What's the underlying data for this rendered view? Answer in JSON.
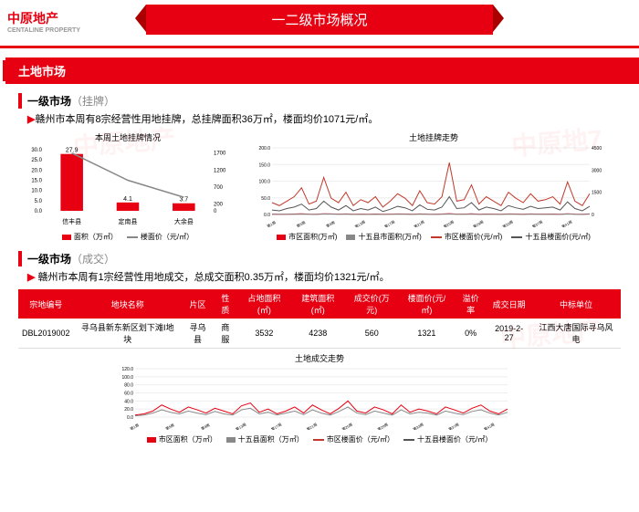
{
  "logo": {
    "brand": "中原地产",
    "en": "CENTALINE PROPERTY"
  },
  "banner": {
    "title": "一二级市场概况"
  },
  "section_land": {
    "label": "土地市场"
  },
  "sub_listing": {
    "title": "一级市场",
    "suffix": "（挂牌）"
  },
  "listing_desc": "赣州市本周有8宗经营性用地挂牌，总挂牌面积36万㎡，楼面均价1071元/㎡。",
  "chart_left": {
    "title": "本周土地挂牌情况",
    "categories": [
      "信丰县",
      "定南县",
      "大余县"
    ],
    "bars": [
      27.9,
      4.1,
      3.7
    ],
    "bar_labels": [
      "27.9",
      "4.1",
      "3.7"
    ],
    "line": [
      1700,
      900,
      400
    ],
    "ylim_left": [
      0,
      30
    ],
    "ytick_left": [
      0,
      5,
      10,
      15,
      20,
      25,
      30
    ],
    "ylim_right": [
      0,
      1800
    ],
    "ytick_right": [
      0,
      200,
      700,
      1200,
      1700
    ],
    "bar_color": "#e60012",
    "line_color": "#888",
    "legend": [
      {
        "label": "面积（万㎡）",
        "type": "sq",
        "color": "#e60012"
      },
      {
        "label": "楼面价（元/㎡）",
        "type": "ln",
        "color": "#888"
      }
    ]
  },
  "chart_right": {
    "title": "土地挂牌走势",
    "ylim_left": [
      0,
      200
    ],
    "ytick_left": [
      "0.0",
      "50.0",
      "100.0",
      "150.0",
      "200.0"
    ],
    "ylim_right": [
      0,
      4500
    ],
    "ytick_right": [
      "0",
      "1500",
      "3000",
      "4500"
    ],
    "series": {
      "area_urban": [
        20,
        15,
        18,
        30,
        45,
        22,
        18,
        50,
        35,
        20,
        40,
        15,
        25,
        18,
        30,
        12,
        22,
        35,
        28,
        15,
        40,
        20,
        18,
        30,
        55,
        20,
        25,
        45,
        18,
        30,
        22,
        15,
        40,
        28,
        18,
        35,
        20,
        25,
        30,
        18,
        50,
        22,
        15,
        35
      ],
      "area_15": [
        10,
        8,
        12,
        18,
        25,
        12,
        10,
        30,
        20,
        12,
        22,
        8,
        15,
        10,
        18,
        8,
        12,
        20,
        15,
        8,
        22,
        12,
        10,
        18,
        30,
        12,
        15,
        25,
        10,
        18,
        12,
        8,
        22,
        15,
        10,
        20,
        12,
        15,
        18,
        10,
        28,
        12,
        8,
        20
      ],
      "price_urban": [
        800,
        600,
        900,
        1200,
        1800,
        700,
        900,
        2500,
        1100,
        800,
        1500,
        600,
        1000,
        800,
        1200,
        500,
        900,
        1400,
        1100,
        600,
        1600,
        800,
        700,
        1200,
        3500,
        900,
        1000,
        2000,
        700,
        1200,
        900,
        600,
        1500,
        1100,
        800,
        1400,
        900,
        1000,
        1200,
        700,
        2200,
        900,
        600,
        1400
      ],
      "price_15": [
        300,
        250,
        400,
        500,
        700,
        300,
        400,
        900,
        500,
        300,
        600,
        250,
        400,
        300,
        500,
        200,
        350,
        550,
        450,
        250,
        650,
        350,
        300,
        500,
        1200,
        400,
        450,
        800,
        300,
        500,
        400,
        250,
        600,
        450,
        350,
        550,
        400,
        450,
        500,
        300,
        850,
        400,
        250,
        550
      ]
    },
    "colors": {
      "area_urban": "#e60012",
      "area_15": "#888",
      "price_urban": "#c0392b",
      "price_15": "#555"
    },
    "legend": [
      {
        "label": "市区面积(万㎡)",
        "type": "sq",
        "color": "#e60012"
      },
      {
        "label": "十五县市面积(万㎡)",
        "type": "sq",
        "color": "#888"
      },
      {
        "label": "市区楼面价(元/㎡)",
        "type": "ln",
        "color": "#c0392b"
      },
      {
        "label": "十五县楼面价(元/㎡)",
        "type": "ln",
        "color": "#555"
      }
    ]
  },
  "sub_deal": {
    "title": "一级市场",
    "suffix": "（成交）"
  },
  "deal_desc": "赣州市本周有1宗经营性用地成交，总成交面积0.35万㎡，楼面均价1321元/㎡。",
  "table": {
    "headers": [
      "宗地编号",
      "地块名称",
      "片区",
      "性质",
      "占地面积(㎡)",
      "建筑面积(㎡)",
      "成交价(万元)",
      "楼面价(元/㎡)",
      "溢价率",
      "成交日期",
      "中标单位"
    ],
    "row": [
      "DBL2019002",
      "寻乌县新东新区划下滩Ⅰ地块",
      "寻乌县",
      "商服",
      "3532",
      "4238",
      "560",
      "1321",
      "0%",
      "2019-2-27",
      "江西大唐国际寻乌风电"
    ]
  },
  "chart_bottom": {
    "title": "土地成交走势",
    "ylim": [
      0,
      120
    ],
    "ytick": [
      "0.0",
      "20.0",
      "40.0",
      "60.0",
      "80.0",
      "100.0",
      "120.0"
    ],
    "series": {
      "a": [
        5,
        8,
        15,
        30,
        20,
        12,
        25,
        18,
        10,
        22,
        15,
        8,
        28,
        35,
        12,
        20,
        8,
        15,
        25,
        10,
        30,
        18,
        8,
        22,
        40,
        15,
        10,
        25,
        18,
        8,
        30,
        12,
        20,
        15,
        8,
        25,
        18,
        10,
        22,
        30,
        15,
        8,
        20
      ],
      "b": [
        3,
        5,
        10,
        18,
        12,
        8,
        15,
        10,
        6,
        14,
        8,
        5,
        18,
        22,
        8,
        12,
        5,
        10,
        15,
        6,
        18,
        10,
        5,
        14,
        25,
        10,
        6,
        15,
        10,
        5,
        18,
        8,
        12,
        10,
        5,
        15,
        10,
        6,
        14,
        18,
        10,
        5,
        12
      ]
    },
    "colors": {
      "a": "#e60012",
      "b": "#888"
    },
    "legend": [
      {
        "label": "市区面积（万㎡）",
        "type": "sq",
        "color": "#e60012"
      },
      {
        "label": "十五县面积（万㎡）",
        "type": "sq",
        "color": "#888"
      },
      {
        "label": "市区楼面价（元/㎡）",
        "type": "ln",
        "color": "#c0392b"
      },
      {
        "label": "十五县楼面价（元/㎡）",
        "type": "ln",
        "color": "#555"
      }
    ]
  }
}
